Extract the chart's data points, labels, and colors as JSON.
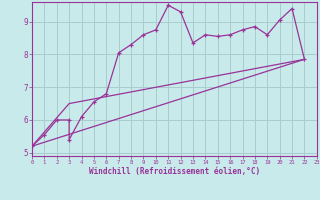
{
  "xlabel": "Windchill (Refroidissement éolien,°C)",
  "bg_color": "#c8eaea",
  "grid_color": "#aacccc",
  "line_color": "#993399",
  "xmin": 0,
  "xmax": 23,
  "ymin": 4.9,
  "ymax": 9.6,
  "line1_x": [
    0,
    1,
    2,
    3,
    3,
    4,
    5,
    6,
    7,
    8,
    9,
    10,
    11,
    12,
    13,
    14,
    15,
    16,
    17,
    18,
    19,
    20,
    21,
    22
  ],
  "line1_y": [
    5.2,
    5.55,
    6.0,
    6.0,
    5.4,
    6.1,
    6.55,
    6.8,
    8.05,
    8.3,
    8.6,
    8.75,
    9.5,
    9.3,
    8.35,
    8.6,
    8.55,
    8.6,
    8.75,
    8.85,
    8.6,
    9.05,
    9.4,
    7.85
  ],
  "line2_x": [
    0,
    22
  ],
  "line2_y": [
    5.2,
    7.85
  ],
  "line3_x": [
    0,
    3,
    22
  ],
  "line3_y": [
    5.2,
    6.5,
    7.85
  ],
  "yticks": [
    5,
    6,
    7,
    8,
    9
  ],
  "xticks": [
    0,
    1,
    2,
    3,
    4,
    5,
    6,
    7,
    8,
    9,
    10,
    11,
    12,
    13,
    14,
    15,
    16,
    17,
    18,
    19,
    20,
    21,
    22,
    23
  ]
}
